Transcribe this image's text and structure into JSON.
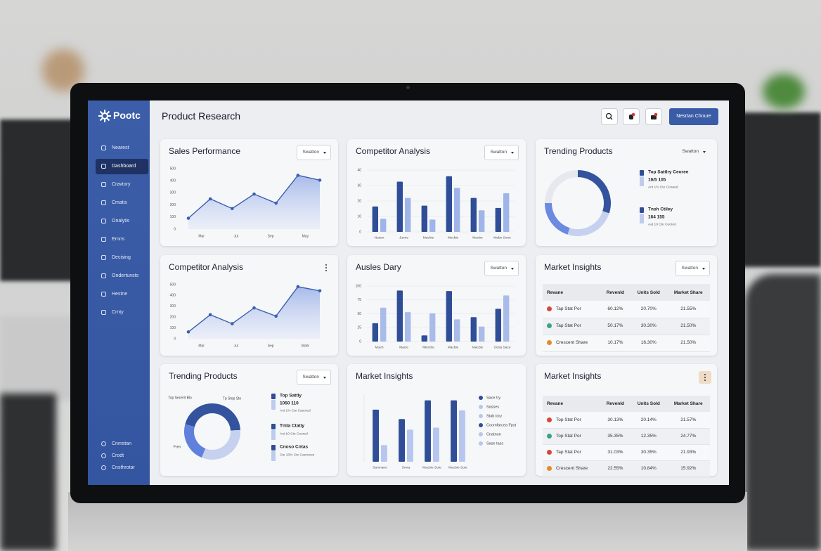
{
  "sidebar": {
    "brand": "Pootc",
    "nav": [
      "Nearest",
      "Dashboard",
      "Cravtory",
      "Cmatis",
      "Onalytis",
      "Ernns",
      "Decising",
      "Ondertunsts",
      "Hestne",
      "Crnty"
    ],
    "active": 1,
    "footer": [
      "Cnmstan",
      "Crodt",
      "Cnsthrotar"
    ]
  },
  "header": {
    "title": "Product Research",
    "button": "Nesrtan Chnure"
  },
  "cards": [
    {
      "type": "line",
      "title": "Sales Performance",
      "control": "Swatton",
      "ylim": [
        0,
        500
      ],
      "yticks": [
        0,
        100,
        200,
        300,
        400,
        500
      ],
      "x_labels": [
        "Mar",
        "Jul",
        "Sep",
        "May"
      ],
      "values": [
        90,
        250,
        170,
        290,
        215,
        445,
        405
      ],
      "color": "#3b5fb0"
    },
    {
      "type": "bar",
      "title": "Competitor Analysis",
      "control": "Swatton",
      "ylim": [
        0,
        40
      ],
      "yticks": [
        0,
        10,
        20,
        30,
        40
      ],
      "grid": true,
      "categories": [
        "Nusen",
        "Juene",
        "Macbie",
        "Mecbie",
        "Macbe",
        "Mebe Sone"
      ],
      "series": [
        {
          "color": "#2f4e97",
          "values": [
            16.5,
            32.5,
            17,
            36,
            22,
            15.5
          ]
        },
        {
          "color": "#9fb5ea",
          "values": [
            8.5,
            22,
            8,
            28.5,
            14,
            25
          ]
        }
      ]
    },
    {
      "type": "donut",
      "title": "Trending Products",
      "control": "Swatton",
      "segments": [
        {
          "value": 30,
          "color": "#34539e"
        },
        {
          "value": 25,
          "color": "#c5d1ee"
        },
        {
          "value": 20,
          "color": "#6b8ae0"
        },
        {
          "value": 25,
          "color": "#e6e8ee"
        }
      ],
      "legend": [
        {
          "name": "Top Sattlry Ceoree",
          "value": "16/5 105",
          "note": "Ant 1% Cte Cooaed",
          "color": "#2f4e97"
        },
        {
          "name": "Tnsh Ctiley",
          "value": "164 155",
          "note": "Aat 10 Cte Ceored",
          "color": "#2f4e97"
        }
      ]
    },
    {
      "type": "line",
      "title": "Competitor Analysis",
      "menu": true,
      "ylim": [
        0,
        500
      ],
      "yticks": [
        0,
        100,
        200,
        300,
        400,
        500
      ],
      "x_labels": [
        "Mar",
        "Jul",
        "Sep",
        "Mark"
      ],
      "values": [
        63,
        222,
        139,
        285,
        209,
        481,
        443
      ],
      "color": "#3b5fb0"
    },
    {
      "type": "bar",
      "title": "Ausles Dary",
      "control": "Swatton",
      "ylim": [
        0,
        100
      ],
      "yticks": [
        0,
        25,
        50,
        75,
        100
      ],
      "grid": true,
      "categories": [
        "Mueh",
        "Macie",
        "Mlecbie",
        "Macbie",
        "Macbie",
        "Sclas Sace"
      ],
      "series": [
        {
          "color": "#2f4e97",
          "values": [
            33,
            92,
            11,
            91,
            44,
            59
          ]
        },
        {
          "color": "#a9bce9",
          "values": [
            61,
            53,
            51,
            40,
            27,
            83
          ]
        }
      ]
    },
    {
      "type": "table",
      "title": "Market Insights",
      "control": "Swatton",
      "columns": [
        "Revane",
        "Revenld",
        "Units Sold",
        "Market Share"
      ],
      "rows": [
        [
          "Tap Stat Por",
          "60.12%",
          "20.70%",
          "21.55%"
        ],
        [
          "Tap Stat Por",
          "50.17%",
          "30.30%",
          "21.50%"
        ],
        [
          "Crescent Share",
          "10.17%",
          "16.30%",
          "21.50%"
        ]
      ]
    },
    {
      "type": "donut",
      "title": "Trending Products",
      "control": "Swatton",
      "segments": [
        {
          "value": 45,
          "color": "#34539e"
        },
        {
          "value": 32,
          "color": "#c5d1ee"
        },
        {
          "value": 23,
          "color": "#5f80dc"
        }
      ],
      "labels": [
        "Top Secerit Blo",
        "Tp Stop Sto",
        "Fren"
      ],
      "legend": [
        {
          "name": "Top Sattly",
          "value": "1050 110",
          "note": "Ant 1% Cte Casored",
          "color": "#2f4e97"
        },
        {
          "name": "Tnila Ctatiy",
          "note": "Ant 10 Cte Ceored",
          "color": "#2f4e97"
        },
        {
          "name": "Cnoso Cntas",
          "note": "Cte 10% Cte Caerenes",
          "color": "#2f4e97"
        }
      ]
    },
    {
      "type": "bar",
      "title": "Market Insights",
      "ylim": [
        0,
        100
      ],
      "categories": [
        "Sanmane",
        "Srnra",
        "Macbie Sote",
        "Macbie Sote"
      ],
      "series": [
        {
          "color": "#2f4e97",
          "values": [
            78,
            64,
            92,
            92
          ]
        },
        {
          "color": "#b7c6ee",
          "values": [
            25,
            48,
            51,
            77
          ]
        }
      ],
      "legend": [
        {
          "label": "Sace try",
          "color": "#2f4e97"
        },
        {
          "label": "Sasses",
          "color": "#b7c6ee"
        },
        {
          "label": "Stab tory",
          "color": "#b7c6ee"
        },
        {
          "label": "Coomfarcea Fpst",
          "color": "#2f4e97"
        },
        {
          "label": "Cnatnon",
          "color": "#b7c6ee"
        },
        {
          "label": "Sase tass",
          "color": "#b7c6ee"
        }
      ]
    },
    {
      "type": "table",
      "title": "Market Insights",
      "menu": true,
      "columns": [
        "Revane",
        "Revenld",
        "Units Sold",
        "Market Share"
      ],
      "rows": [
        [
          "Top Stat Por",
          "30.13%",
          "20.14%",
          "21.57%"
        ],
        [
          "Top Stat Por",
          "35.35%",
          "12.35%",
          "24.77%"
        ],
        [
          "Tap Stat Por",
          "31.03%",
          "30.35%",
          "21.93%"
        ],
        [
          "Crescent Share",
          "22.55%",
          "10.84%",
          "15.92%"
        ]
      ]
    }
  ]
}
